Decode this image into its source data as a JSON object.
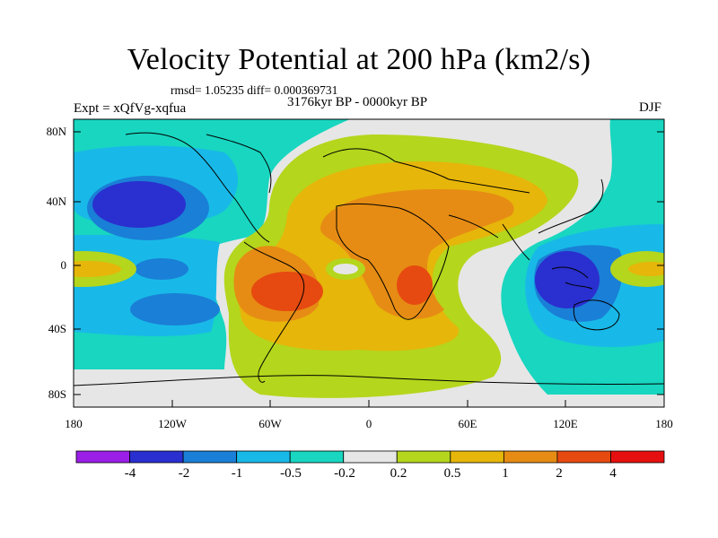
{
  "title": "Velocity Potential at 200 hPa (km2/s)",
  "stats_line": "rmsd= 1.05235 diff= 0.000369731",
  "period_line": "3176kyr BP - 0000kyr BP",
  "experiment_label": "Expt = xQfVg-xqfua",
  "season_label": "DJF",
  "colors": {
    "-4": "#9b1fe6",
    "-2": "#2a2fcf",
    "-1": "#1a7fd6",
    "-0.5": "#18b9e8",
    "-0.2": "#18d6c0",
    "0.2": "#e6e6e6",
    "0.5": "#b4d61c",
    "1": "#e6b60a",
    "2": "#e68c14",
    "4": "#e64a10",
    "max": "#e60f0f"
  },
  "map": {
    "y_axis_labels": [
      "80N",
      "40N",
      "0",
      "40S",
      "80S"
    ],
    "x_axis_labels": [
      "180",
      "120W",
      "60W",
      "0",
      "60E",
      "120E",
      "180"
    ]
  },
  "colorbar": {
    "labels": [
      "-4",
      "-2",
      "-1",
      "-0.5",
      "-0.2",
      "0.2",
      "0.5",
      "1",
      "2",
      "4"
    ],
    "bins": [
      {
        "color": "#9b1fe6"
      },
      {
        "color": "#2a2fcf"
      },
      {
        "color": "#1a7fd6"
      },
      {
        "color": "#18b9e8"
      },
      {
        "color": "#18d6c0"
      },
      {
        "color": "#e6e6e6"
      },
      {
        "color": "#b4d61c"
      },
      {
        "color": "#e6b60a"
      },
      {
        "color": "#e68c14"
      },
      {
        "color": "#e64a10"
      },
      {
        "color": "#e60f0f"
      }
    ]
  }
}
